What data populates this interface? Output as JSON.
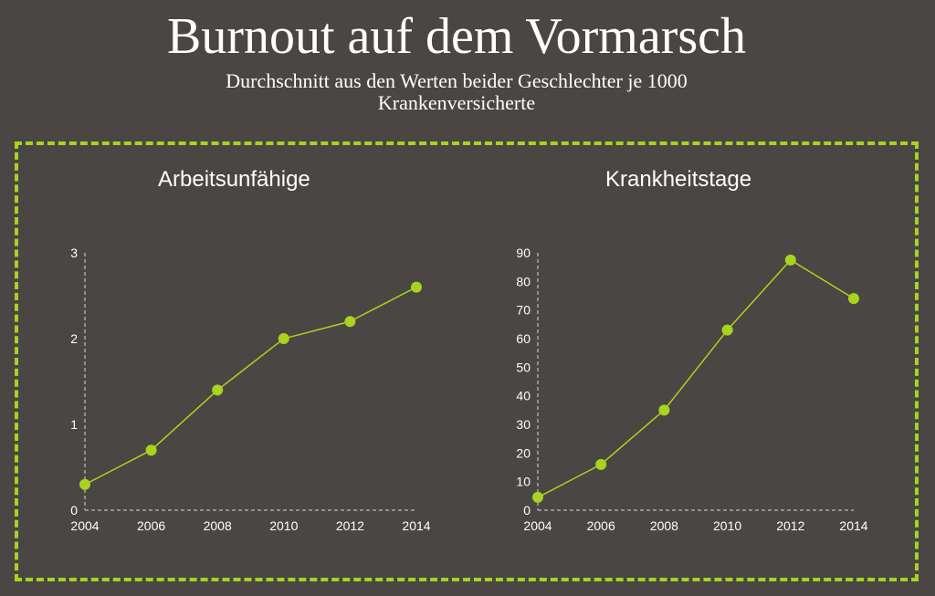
{
  "header": {
    "title": "Burnout auf dem Vormarsch",
    "subtitle_line1": "Durchschnitt aus den Werten beider Geschlechter je 1000",
    "subtitle_line2": "Krankenversicherte"
  },
  "colors": {
    "background": "#4a4643",
    "accent": "#a8d31f",
    "text": "#ffffff",
    "axis": "#d8d8d8"
  },
  "chart_data": [
    {
      "type": "line",
      "title": "Arbeitsunfähige",
      "x": [
        2004,
        2006,
        2008,
        2010,
        2012,
        2014
      ],
      "x_ticks": [
        "2004",
        "2006",
        "2008",
        "2010",
        "2012",
        "2014"
      ],
      "series": [
        {
          "values": [
            0.3,
            0.7,
            1.4,
            2.0,
            2.2,
            2.6
          ]
        }
      ],
      "ylim": [
        0,
        3
      ],
      "y_ticks": [
        "0",
        "1",
        "2",
        "3"
      ],
      "grid": false
    },
    {
      "type": "line",
      "title": "Krankheitstage",
      "x": [
        2004,
        2006,
        2008,
        2010,
        2012,
        2014
      ],
      "x_ticks": [
        "2004",
        "2006",
        "2008",
        "2010",
        "2012",
        "2014"
      ],
      "series": [
        {
          "values": [
            4.5,
            16,
            35,
            63,
            87.5,
            74
          ]
        }
      ],
      "ylim": [
        0,
        90
      ],
      "y_ticks": [
        "0",
        "10",
        "20",
        "30",
        "40",
        "50",
        "60",
        "70",
        "80",
        "90"
      ],
      "grid": false
    }
  ]
}
